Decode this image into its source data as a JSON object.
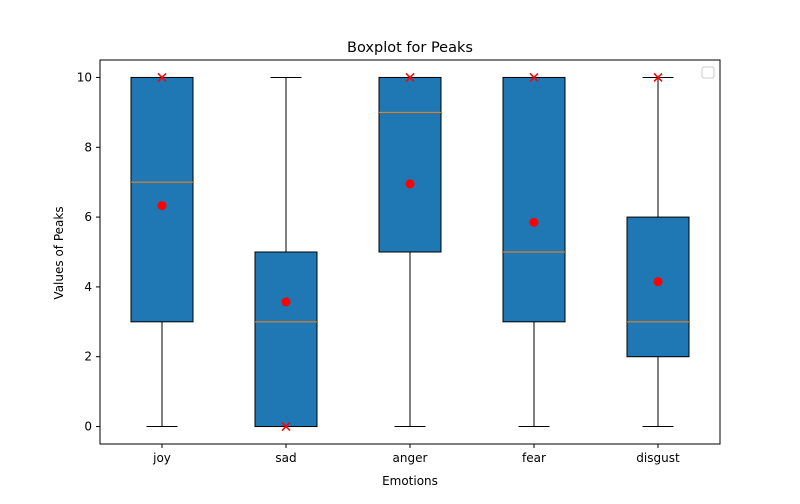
{
  "chart_data": {
    "type": "box",
    "title": "Boxplot for Peaks",
    "xlabel": "Emotions",
    "ylabel": "Values of Peaks",
    "ylim": [
      -0.5,
      10.5
    ],
    "yticks": [
      0,
      2,
      4,
      6,
      8,
      10
    ],
    "grid": false,
    "legend": {
      "placement": "top-right",
      "entries": []
    },
    "categories": [
      "joy",
      "sad",
      "anger",
      "fear",
      "disgust"
    ],
    "boxes": [
      {
        "category": "joy",
        "whisker_low": 0,
        "q1": 3,
        "median": 7,
        "q3": 10,
        "whisker_high": 10,
        "mean": 6.33,
        "mode": 10
      },
      {
        "category": "sad",
        "whisker_low": 0,
        "q1": 0,
        "median": 3,
        "q3": 5,
        "whisker_high": 10,
        "mean": 3.57,
        "mode": 0
      },
      {
        "category": "anger",
        "whisker_low": 0,
        "q1": 5,
        "median": 9,
        "q3": 10,
        "whisker_high": 10,
        "mean": 6.95,
        "mode": 10
      },
      {
        "category": "fear",
        "whisker_low": 0,
        "q1": 3,
        "median": 5,
        "q3": 10,
        "whisker_high": 10,
        "mean": 5.85,
        "mode": 10
      },
      {
        "category": "disgust",
        "whisker_low": 0,
        "q1": 2,
        "median": 3,
        "q3": 6,
        "whisker_high": 10,
        "mean": 4.15,
        "mode": 10
      }
    ],
    "colors": {
      "box_fill": "#1f77b4",
      "median_line": "#ff7f0e",
      "mean_marker": "#ff0000",
      "mode_marker": "#ff0000",
      "lines": "#000000"
    }
  }
}
